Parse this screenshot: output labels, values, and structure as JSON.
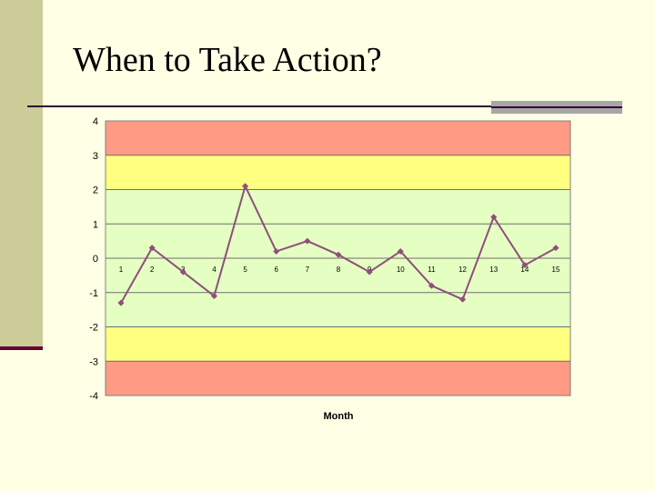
{
  "slide": {
    "title": "When to Take Action?"
  },
  "colors": {
    "band_red": "#FF9A85",
    "band_yellow": "#FFFF80",
    "band_green": "#E5FFC2",
    "line": "#8E4F7C",
    "marker": "#8E4F7C",
    "background": "#FFFFE5",
    "sidebar": "#CCCC99"
  },
  "chart_data": {
    "type": "line",
    "xlabel": "Month",
    "ylabel": "",
    "ylim": [
      -4,
      4
    ],
    "yticks": [
      "4",
      "3",
      "2",
      "1",
      "0",
      "-1",
      "-2",
      "-3",
      "-4"
    ],
    "categories": [
      "1",
      "2",
      "3",
      "4",
      "5",
      "6",
      "7",
      "8",
      "9",
      "10",
      "11",
      "12",
      "13",
      "14",
      "15"
    ],
    "series": [
      {
        "values": [
          -1.3,
          0.3,
          -0.4,
          -1.1,
          2.1,
          0.2,
          0.5,
          0.1,
          -0.4,
          0.2,
          -0.8,
          -1.2,
          1.2,
          -0.2,
          0.3
        ]
      }
    ],
    "bands": [
      {
        "from": 3,
        "to": 4,
        "zone": "red"
      },
      {
        "from": 2,
        "to": 3,
        "zone": "yellow"
      },
      {
        "from": -2,
        "to": 2,
        "zone": "green"
      },
      {
        "from": -3,
        "to": -2,
        "zone": "yellow"
      },
      {
        "from": -4,
        "to": -3,
        "zone": "red"
      }
    ],
    "grid": true
  }
}
